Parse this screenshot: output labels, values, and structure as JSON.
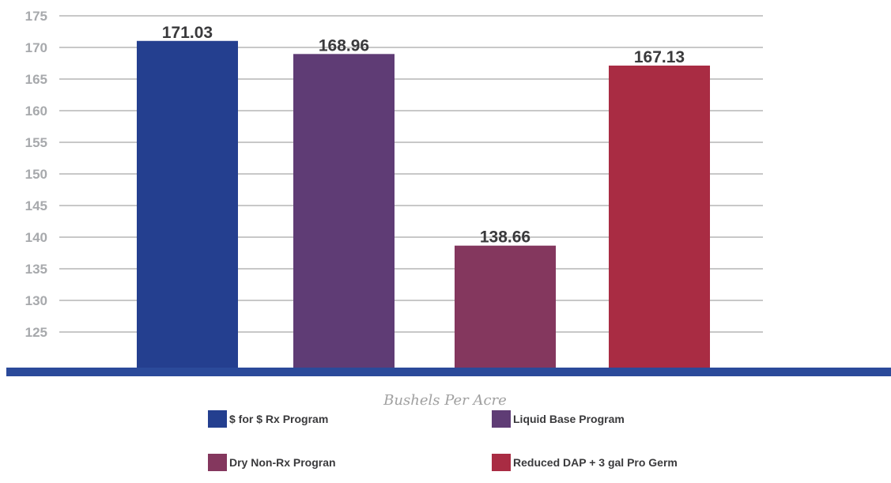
{
  "chart_data": {
    "type": "bar",
    "categories": [
      "$ for $ Rx Program",
      "Liquid Base Program",
      "Dry Non-Rx Progran",
      "Reduced DAP + 3 gal Pro Germ"
    ],
    "values": [
      171.03,
      168.96,
      138.66,
      167.13
    ],
    "value_labels": [
      "171.03",
      "168.96",
      "138.66",
      "167.13"
    ],
    "colors": [
      "#243f8f",
      "#5f3c75",
      "#84375e",
      "#a92c43"
    ],
    "axis_color": "#2b4a9a",
    "grid_color": "#c8c8c8",
    "xlabel": "Bushels Per Acre",
    "ylabel": "",
    "ylim": [
      120,
      175
    ],
    "yticks": [
      125,
      130,
      135,
      140,
      145,
      150,
      155,
      160,
      165,
      170,
      175
    ],
    "grid": true,
    "legend_position": "bottom"
  }
}
